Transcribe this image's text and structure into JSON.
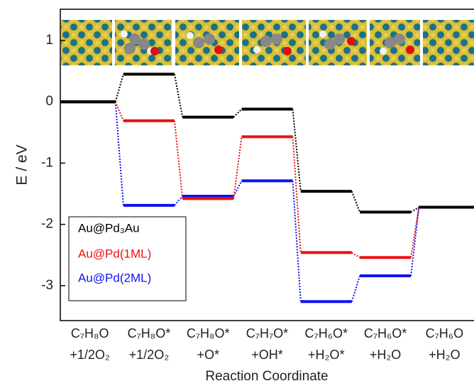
{
  "chart_data": {
    "type": "energy_profile",
    "y_label": "E / eV",
    "x_label": "Reaction Coordinate",
    "categories": [
      "C₇H₈O\n+1/2O₂",
      "C₇H₈O*\n+1/2O₂",
      "C₇H₈O*\n+O*",
      "C₇H₇O*\n+OH*",
      "C₇H₆O*\n+H₂O*",
      "C₇H₆O*\n+H₂O",
      "C₇H₆O\n+H₂O"
    ],
    "series": [
      {
        "name": "Au@Pd₃Au",
        "color": "#000000",
        "values": [
          0,
          0.45,
          -0.25,
          -0.12,
          -1.46,
          -1.8,
          -1.72
        ]
      },
      {
        "name": "Au@Pd(1ML)",
        "color": "#ee1111",
        "values": [
          0,
          -0.31,
          -1.58,
          -0.57,
          -2.46,
          -2.54,
          -1.72
        ]
      },
      {
        "name": "Au@Pd(2ML)",
        "color": "#1111ee",
        "values": [
          0,
          -1.69,
          -1.54,
          -1.29,
          -3.26,
          -2.84,
          -1.72
        ]
      }
    ],
    "ylim": [
      -3.57,
      1.51
    ],
    "yticks": [
      1,
      0,
      -1,
      -2,
      -3
    ]
  }
}
